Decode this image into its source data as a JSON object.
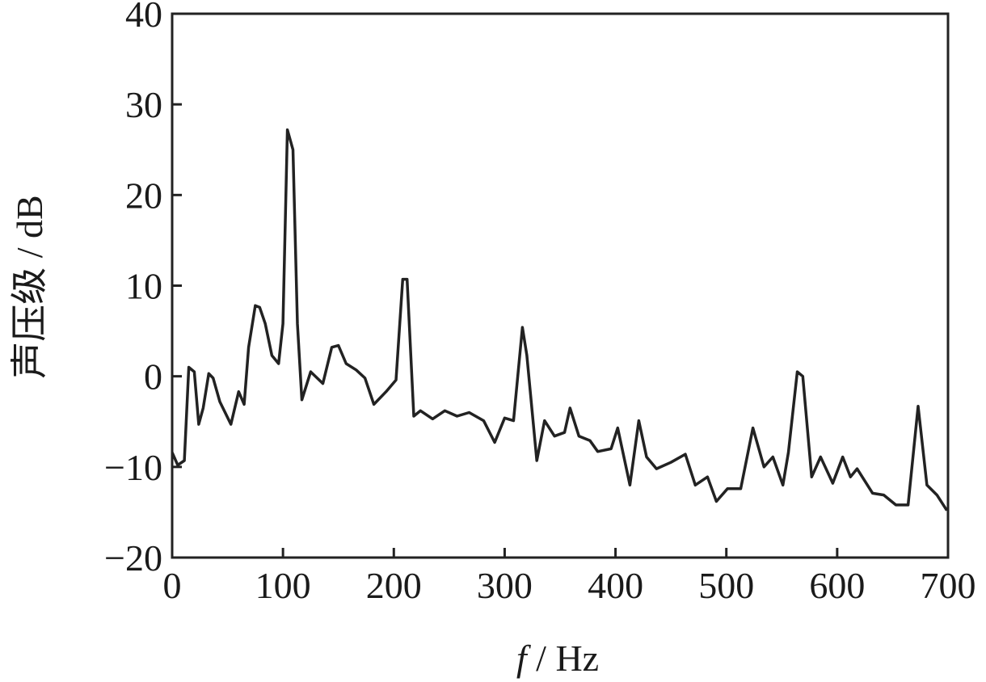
{
  "chart_data": {
    "type": "line",
    "y_label": "声压级 / dB",
    "x_label_var": "f",
    "x_label_unit": "/ Hz",
    "color": "#222222",
    "xlim": [
      0,
      700
    ],
    "xticks": [
      0,
      100,
      200,
      300,
      400,
      500,
      600,
      700
    ],
    "ylim": [
      -20,
      40
    ],
    "yticks": [
      {
        "value": -20,
        "label": "−20"
      },
      {
        "value": -10,
        "label": "−10"
      },
      0,
      10,
      20,
      30,
      40
    ],
    "x": [
      0,
      5,
      11,
      15,
      20,
      24,
      28,
      33,
      37,
      43,
      53,
      60,
      65,
      69,
      75,
      79,
      84,
      90,
      96,
      100,
      104,
      109,
      113,
      117,
      125,
      136,
      144,
      150,
      157,
      166,
      174,
      182,
      193,
      202,
      208,
      212,
      218,
      224,
      235,
      246,
      257,
      268,
      281,
      291,
      300,
      308,
      316,
      320,
      329,
      336,
      345,
      354,
      359,
      367,
      377,
      384,
      396,
      402,
      413,
      421,
      428,
      437,
      450,
      463,
      472,
      483,
      491,
      501,
      513,
      524,
      534,
      542,
      551,
      556,
      564,
      569,
      577,
      585,
      596,
      605,
      612,
      618,
      632,
      642,
      653,
      664,
      673,
      681,
      690,
      699
    ],
    "values": [
      -8.4,
      -9.8,
      -9.3,
      1,
      0.5,
      -5.3,
      -3.5,
      0.3,
      -0.2,
      -2.8,
      -5.3,
      -1.7,
      -3.1,
      3.2,
      7.8,
      7.6,
      5.8,
      2.3,
      1.4,
      5.8,
      27.2,
      25,
      5.8,
      -2.6,
      0.5,
      -0.8,
      3.2,
      3.4,
      1.4,
      0.7,
      -0.2,
      -3.1,
      -1.7,
      -0.4,
      10.7,
      10.7,
      -4.4,
      -3.8,
      -4.7,
      -3.8,
      -4.4,
      -4.0,
      -4.9,
      -7.3,
      -4.6,
      -4.9,
      5.4,
      2.3,
      -9.3,
      -4.9,
      -6.6,
      -6.2,
      -3.5,
      -6.6,
      -7.1,
      -8.3,
      -8.0,
      -5.7,
      -12.0,
      -4.9,
      -8.9,
      -10.2,
      -9.5,
      -8.6,
      -12.0,
      -11.1,
      -13.8,
      -12.4,
      -12.4,
      -5.7,
      -10.0,
      -8.9,
      -12.0,
      -8.4,
      0.5,
      0,
      -11.1,
      -8.9,
      -11.8,
      -8.9,
      -11.1,
      -10.2,
      -12.9,
      -13.1,
      -14.2,
      -14.2,
      -3.3,
      -12.0,
      -13.1,
      -14.8
    ]
  }
}
